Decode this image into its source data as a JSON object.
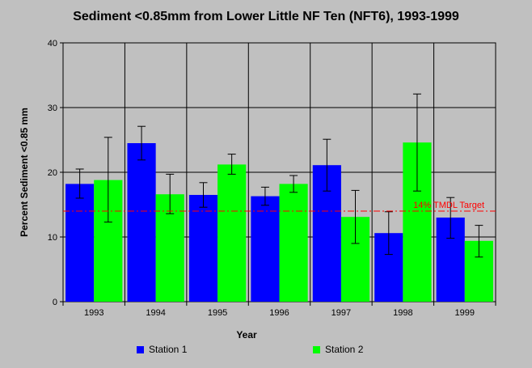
{
  "chart_data": {
    "type": "bar",
    "title": "Sediment <0.85mm from Lower Little NF Ten (NFT6), 1993-1999",
    "xlabel": "Year",
    "ylabel": "Percent Sediment <0.85 mm",
    "ylim": [
      0,
      40
    ],
    "yticks": [
      "0",
      "10",
      "20",
      "30",
      "40"
    ],
    "categories": [
      "1993",
      "1994",
      "1995",
      "1996",
      "1997",
      "1998",
      "1999"
    ],
    "grid": true,
    "legend_position": "bottom",
    "series": [
      {
        "name": "Station 1",
        "color": "#0000ff",
        "values": [
          18.2,
          24.5,
          16.5,
          16.3,
          21.1,
          10.6,
          13.0
        ],
        "error_low": [
          16.0,
          21.9,
          14.6,
          14.9,
          17.1,
          7.3,
          9.8
        ],
        "error_high": [
          20.5,
          27.1,
          18.4,
          17.7,
          25.1,
          13.9,
          16.1
        ]
      },
      {
        "name": "Station 2",
        "color": "#00ff00",
        "values": [
          18.8,
          16.6,
          21.2,
          18.2,
          13.1,
          24.6,
          9.4
        ],
        "error_low": [
          12.3,
          13.6,
          19.7,
          16.9,
          9.0,
          17.1,
          6.9
        ],
        "error_high": [
          25.4,
          19.7,
          22.8,
          19.5,
          17.2,
          32.1,
          11.8
        ]
      }
    ],
    "reference_line": {
      "value": 14,
      "label": "14% TMDL Target",
      "color": "#ff0000",
      "style": "dash-dot"
    }
  }
}
